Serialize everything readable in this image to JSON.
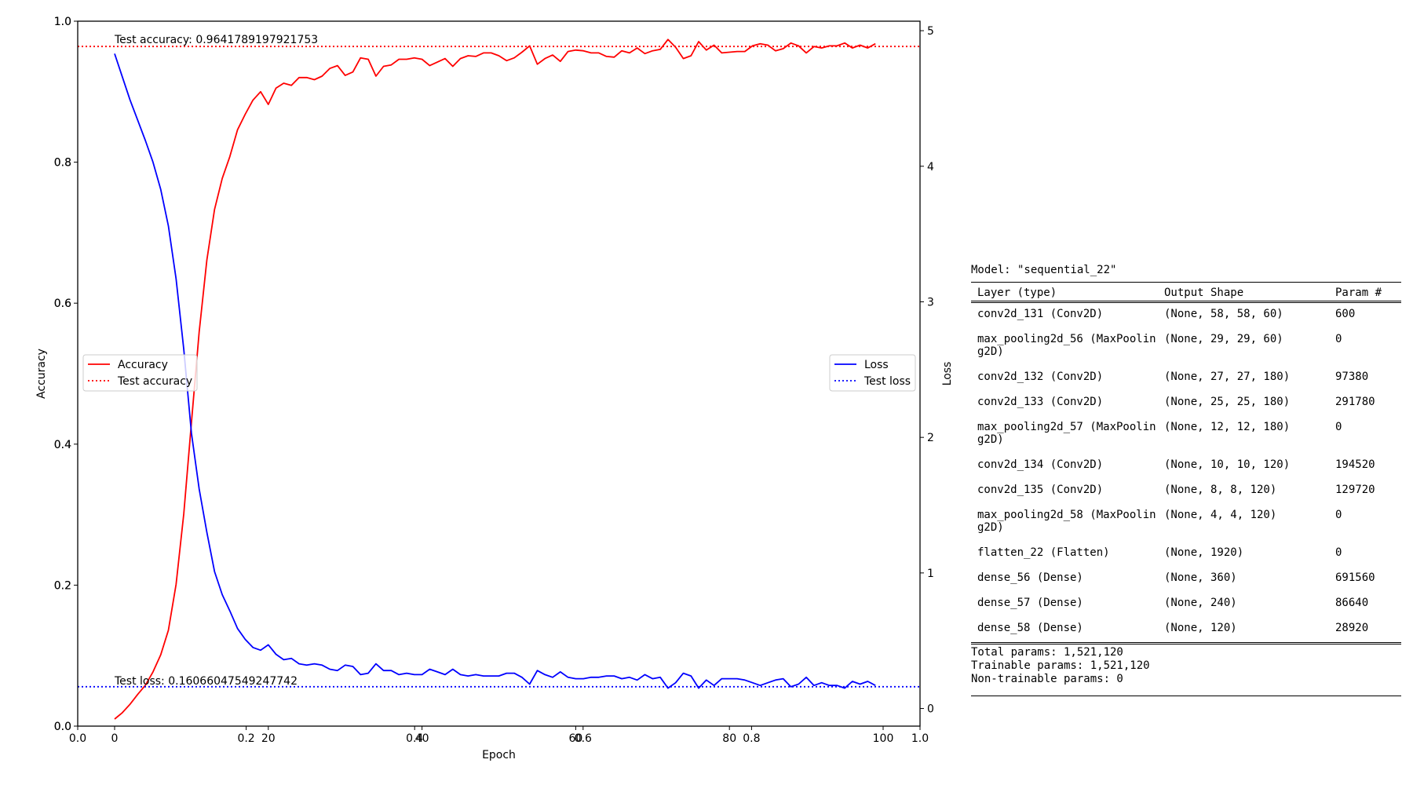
{
  "chart_data": {
    "type": "line",
    "xlabel": "Epoch",
    "ylabel_left": "Accuracy",
    "ylabel_right": "Loss",
    "xlim": [
      -4.8,
      104.8
    ],
    "ylim_left": [
      0.0,
      1.0
    ],
    "ylim_right": [
      -0.13,
      5.07
    ],
    "x_ticks": [
      "0",
      "20",
      "40",
      "60",
      "80",
      "100"
    ],
    "y_left_ticks": [
      "0.0",
      "0.2",
      "0.4",
      "0.6",
      "0.8",
      "1.0"
    ],
    "y_right_ticks": [
      "0",
      "1",
      "2",
      "3",
      "4",
      "5"
    ],
    "overlay_x_ticks": [
      "0.0",
      "0.2",
      "0.4",
      "0.6",
      "0.8",
      "1.0"
    ],
    "overlay_y_ticks": [
      "0.0",
      "0.2",
      "0.4",
      "0.6",
      "0.8",
      "1.0"
    ],
    "legend_left": {
      "placement": "center-left",
      "entries": [
        "Accuracy",
        "Test accuracy"
      ]
    },
    "legend_right": {
      "placement": "center-right",
      "entries": [
        "Loss",
        "Test loss"
      ]
    },
    "annotations": [
      "Test accuracy: 0.9641789197921753",
      "Test loss: 0.16066047549247742"
    ],
    "series": [
      {
        "name": "Accuracy",
        "axis": "left",
        "color": "#ff0000",
        "style": "solid",
        "values": [
          0.01,
          0.019,
          0.031,
          0.045,
          0.058,
          0.077,
          0.101,
          0.136,
          0.201,
          0.301,
          0.431,
          0.559,
          0.661,
          0.733,
          0.777,
          0.808,
          0.846,
          0.868,
          0.888,
          0.9,
          0.882,
          0.905,
          0.912,
          0.909,
          0.92,
          0.92,
          0.917,
          0.922,
          0.933,
          0.937,
          0.923,
          0.928,
          0.948,
          0.946,
          0.922,
          0.936,
          0.938,
          0.946,
          0.946,
          0.948,
          0.946,
          0.937,
          0.942,
          0.947,
          0.936,
          0.947,
          0.951,
          0.95,
          0.955,
          0.955,
          0.951,
          0.944,
          0.948,
          0.956,
          0.965,
          0.939,
          0.947,
          0.952,
          0.943,
          0.957,
          0.959,
          0.958,
          0.955,
          0.955,
          0.95,
          0.949,
          0.958,
          0.955,
          0.962,
          0.954,
          0.958,
          0.96,
          0.974,
          0.963,
          0.947,
          0.951,
          0.971,
          0.959,
          0.966,
          0.955,
          0.956,
          0.957,
          0.957,
          0.965,
          0.968,
          0.966,
          0.958,
          0.961,
          0.969,
          0.965,
          0.955,
          0.964,
          0.962,
          0.965,
          0.965,
          0.969,
          0.962,
          0.966,
          0.962,
          0.968
        ]
      },
      {
        "name": "Loss",
        "axis": "right",
        "color": "#0000ff",
        "style": "solid",
        "values": [
          4.83,
          4.66,
          4.49,
          4.34,
          4.19,
          4.03,
          3.83,
          3.56,
          3.17,
          2.65,
          2.03,
          1.62,
          1.3,
          1.01,
          0.84,
          0.72,
          0.59,
          0.51,
          0.45,
          0.43,
          0.47,
          0.4,
          0.36,
          0.37,
          0.33,
          0.32,
          0.33,
          0.32,
          0.29,
          0.28,
          0.32,
          0.31,
          0.25,
          0.26,
          0.33,
          0.28,
          0.28,
          0.25,
          0.26,
          0.25,
          0.25,
          0.29,
          0.27,
          0.25,
          0.29,
          0.25,
          0.24,
          0.25,
          0.24,
          0.24,
          0.24,
          0.26,
          0.26,
          0.23,
          0.18,
          0.28,
          0.25,
          0.23,
          0.27,
          0.23,
          0.22,
          0.22,
          0.23,
          0.23,
          0.24,
          0.24,
          0.22,
          0.23,
          0.21,
          0.25,
          0.22,
          0.23,
          0.15,
          0.19,
          0.26,
          0.24,
          0.15,
          0.21,
          0.17,
          0.22,
          0.22,
          0.22,
          0.21,
          0.19,
          0.17,
          0.19,
          0.21,
          0.22,
          0.16,
          0.18,
          0.23,
          0.17,
          0.19,
          0.17,
          0.17,
          0.15,
          0.2,
          0.18,
          0.2,
          0.17
        ]
      },
      {
        "name": "Test accuracy",
        "axis": "left",
        "color": "#ff0000",
        "style": "dotted",
        "constant": 0.9641789197921753
      },
      {
        "name": "Test loss",
        "axis": "right",
        "color": "#0000ff",
        "style": "dotted",
        "constant": 0.16066047549247742
      }
    ]
  },
  "model_summary": {
    "title": "Model: \"sequential_22\"",
    "headers": [
      "Layer (type)",
      "Output Shape",
      "Param #"
    ],
    "rows": [
      {
        "layer": "conv2d_131 (Conv2D)",
        "shape": "(None, 58, 58, 60)",
        "params": "600"
      },
      {
        "layer": "max_pooling2d_56 (MaxPoolin\ng2D)",
        "shape": "(None, 29, 29, 60)",
        "params": "0"
      },
      {
        "layer": "conv2d_132 (Conv2D)",
        "shape": "(None, 27, 27, 180)",
        "params": "97380"
      },
      {
        "layer": "conv2d_133 (Conv2D)",
        "shape": "(None, 25, 25, 180)",
        "params": "291780"
      },
      {
        "layer": "max_pooling2d_57 (MaxPoolin\ng2D)",
        "shape": "(None, 12, 12, 180)",
        "params": "0"
      },
      {
        "layer": "conv2d_134 (Conv2D)",
        "shape": "(None, 10, 10, 120)",
        "params": "194520"
      },
      {
        "layer": "conv2d_135 (Conv2D)",
        "shape": "(None, 8, 8, 120)",
        "params": "129720"
      },
      {
        "layer": "max_pooling2d_58 (MaxPoolin\ng2D)",
        "shape": "(None, 4, 4, 120)",
        "params": "0"
      },
      {
        "layer": "flatten_22 (Flatten)",
        "shape": "(None, 1920)",
        "params": "0"
      },
      {
        "layer": "dense_56 (Dense)",
        "shape": "(None, 360)",
        "params": "691560"
      },
      {
        "layer": "dense_57 (Dense)",
        "shape": "(None, 240)",
        "params": "86640"
      },
      {
        "layer": "dense_58 (Dense)",
        "shape": "(None, 120)",
        "params": "28920"
      }
    ],
    "total_params": "Total params: 1,521,120",
    "trainable_params": "Trainable params: 1,521,120",
    "non_trainable_params": "Non-trainable params: 0"
  }
}
